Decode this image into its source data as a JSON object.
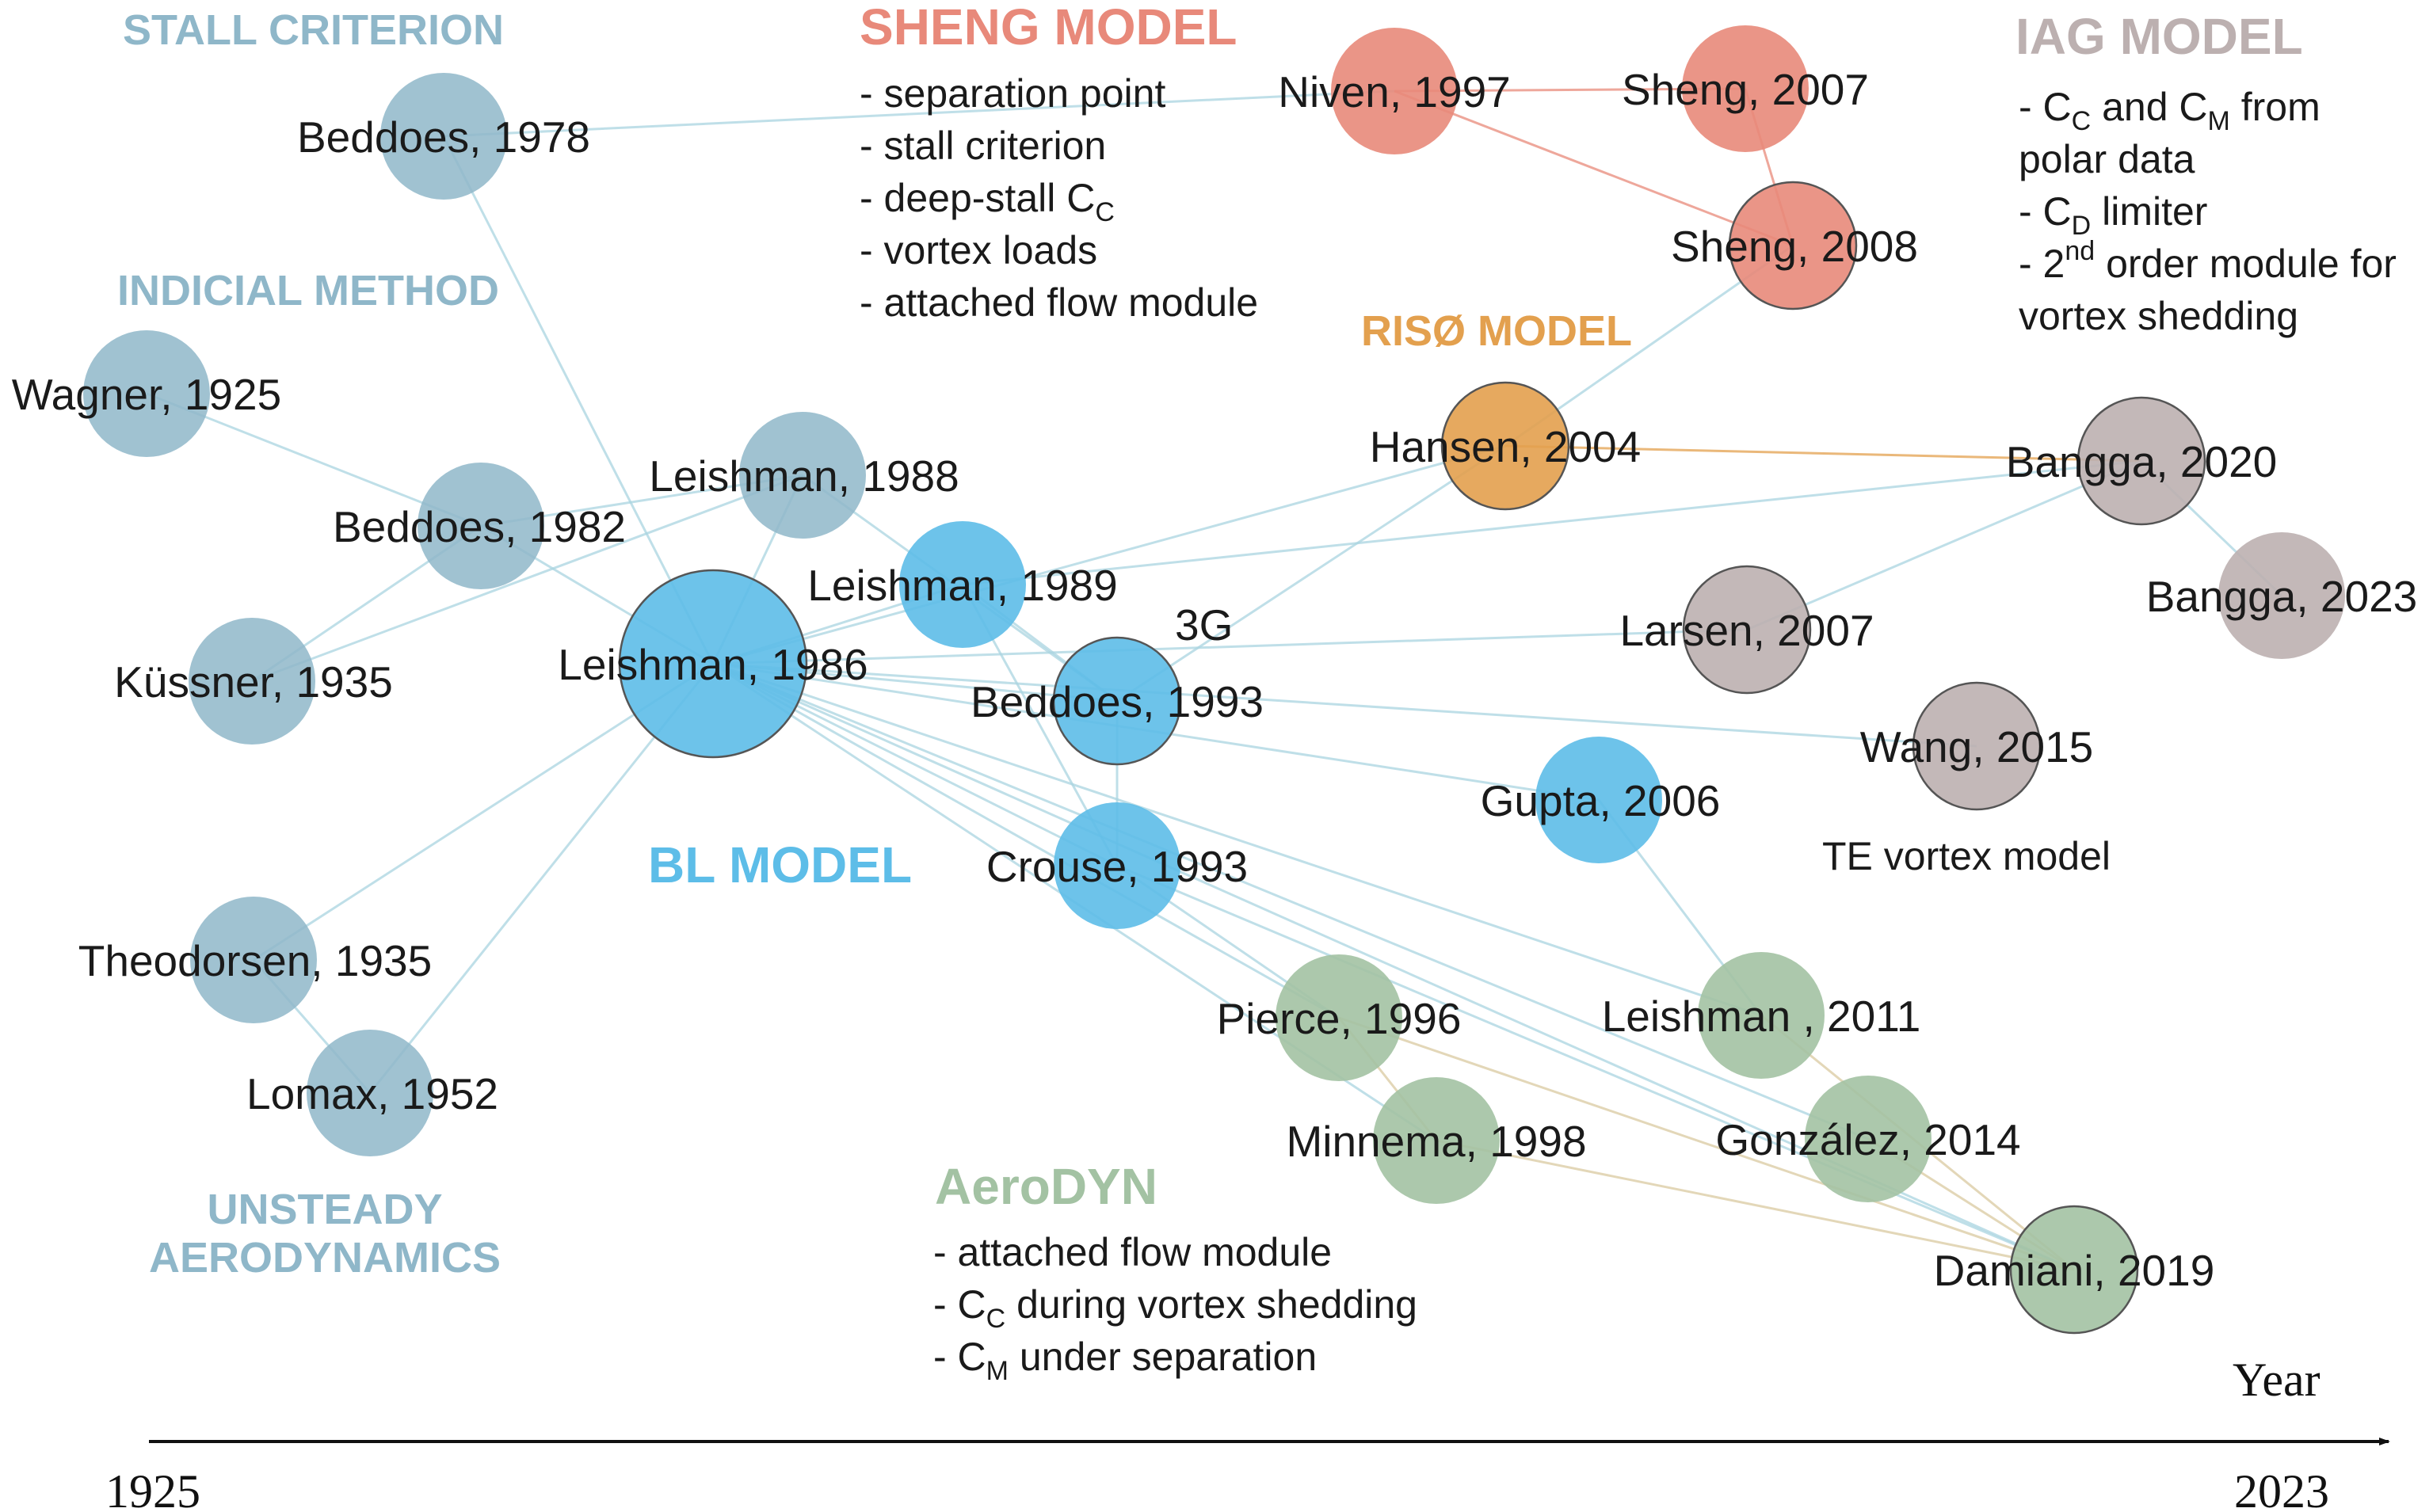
{
  "colors": {
    "unsteady": "#8fb7c9",
    "bl": "#5dbde8",
    "sheng": "#e8897a",
    "riso": "#e3a04e",
    "iag": "#bcb0b0",
    "aerodyn": "#a3c2a3",
    "edge_default": "#a9d4e0"
  },
  "groups": {
    "stall_criterion": "STALL CRITERION",
    "indicial_method": "INDICIAL METHOD",
    "bl_model": "BL MODEL",
    "unsteady_line1": "UNSTEADY",
    "unsteady_line2": "AERODYNAMICS",
    "sheng_model": "SHENG MODEL",
    "riso_model": "RISØ MODEL",
    "iag_model": "IAG MODEL",
    "aerodyn": "AeroDYN"
  },
  "sheng_features": [
    "- separation point",
    "- stall criterion",
    "- deep-stall C",
    "- vortex loads",
    "- attached flow module"
  ],
  "sheng_features_sub": "C",
  "iag_features": {
    "line1_pre": "- C",
    "line1_sub1": "C",
    "line1_mid": " and C",
    "line1_sub2": "M",
    "line1_post": " from",
    "line2": "polar data",
    "line3_pre": "- C",
    "line3_sub": "D",
    "line3_post": " limiter",
    "line4_pre": "- 2",
    "line4_sup": "nd",
    "line4_post": " order module for",
    "line5": "vortex shedding"
  },
  "aerodyn_features": {
    "line1": "- attached flow module",
    "line2_pre": "- C",
    "line2_sub": "C",
    "line2_post": " during vortex shedding",
    "line3_pre": "- C",
    "line3_sub": "M",
    "line3_post": " under separation"
  },
  "annotations": {
    "three_g": "3G",
    "te_vortex": "TE vortex model"
  },
  "axis": {
    "label": "Year",
    "start": "1925",
    "end": "2023"
  },
  "nodes": [
    {
      "id": "beddoes1978",
      "label": "Beddoes, 1978",
      "group": "unsteady"
    },
    {
      "id": "wagner1925",
      "label": "Wagner, 1925",
      "group": "unsteady"
    },
    {
      "id": "beddoes1982",
      "label": "Beddoes, 1982",
      "group": "unsteady"
    },
    {
      "id": "kussner1935",
      "label": "Küssner, 1935",
      "group": "unsteady"
    },
    {
      "id": "theodorsen1935",
      "label": "Theodorsen, 1935",
      "group": "unsteady"
    },
    {
      "id": "lomax1952",
      "label": "Lomax, 1952",
      "group": "unsteady"
    },
    {
      "id": "leishman1988",
      "label": "Leishman, 1988",
      "group": "unsteady"
    },
    {
      "id": "leishman1986",
      "label": "Leishman, 1986",
      "group": "bl"
    },
    {
      "id": "leishman1989",
      "label": "Leishman, 1989",
      "group": "bl"
    },
    {
      "id": "beddoes1993",
      "label": "Beddoes, 1993",
      "group": "bl"
    },
    {
      "id": "crouse1993",
      "label": "Crouse, 1993",
      "group": "bl"
    },
    {
      "id": "gupta2006",
      "label": "Gupta, 2006",
      "group": "bl"
    },
    {
      "id": "niven1997",
      "label": "Niven, 1997",
      "group": "sheng"
    },
    {
      "id": "sheng2007",
      "label": "Sheng, 2007",
      "group": "sheng"
    },
    {
      "id": "sheng2008",
      "label": "Sheng, 2008",
      "group": "sheng"
    },
    {
      "id": "hansen2004",
      "label": "Hansen, 2004",
      "group": "riso"
    },
    {
      "id": "bangga2020",
      "label": "Bangga, 2020",
      "group": "iag"
    },
    {
      "id": "bangga2023",
      "label": "Bangga, 2023",
      "group": "iag"
    },
    {
      "id": "larsen2007",
      "label": "Larsen, 2007",
      "group": "iag"
    },
    {
      "id": "wang2015",
      "label": "Wang, 2015",
      "group": "iag"
    },
    {
      "id": "pierce1996",
      "label": "Pierce, 1996",
      "group": "aerodyn"
    },
    {
      "id": "minnema1998",
      "label": "Minnema, 1998",
      "group": "aerodyn"
    },
    {
      "id": "leishman2011",
      "label": "Leishman , 2011",
      "group": "aerodyn"
    },
    {
      "id": "gonzalez2014",
      "label": "González, 2014",
      "group": "aerodyn"
    },
    {
      "id": "damiani2019",
      "label": "Damiani, 2019",
      "group": "aerodyn"
    }
  ],
  "edges": [
    [
      "beddoes1978",
      "niven1997"
    ],
    [
      "beddoes1978",
      "leishman1986"
    ],
    [
      "wagner1925",
      "beddoes1982"
    ],
    [
      "beddoes1982",
      "kussner1935"
    ],
    [
      "beddoes1982",
      "leishman1986"
    ],
    [
      "beddoes1982",
      "leishman1988"
    ],
    [
      "kussner1935",
      "leishman1988"
    ],
    [
      "theodorsen1935",
      "leishman1986"
    ],
    [
      "theodorsen1935",
      "lomax1952"
    ],
    [
      "lomax1952",
      "leishman1986"
    ],
    [
      "leishman1988",
      "leishman1986"
    ],
    [
      "leishman1988",
      "beddoes1993"
    ],
    [
      "leishman1986",
      "leishman1989"
    ],
    [
      "leishman1986",
      "beddoes1993"
    ],
    [
      "leishman1986",
      "crouse1993"
    ],
    [
      "leishman1986",
      "hansen2004"
    ],
    [
      "leishman1986",
      "larsen2007"
    ],
    [
      "leishman1986",
      "wang2015"
    ],
    [
      "leishman1986",
      "gupta2006"
    ],
    [
      "leishman1986",
      "pierce1996"
    ],
    [
      "leishman1986",
      "minnema1998"
    ],
    [
      "leishman1986",
      "leishman2011"
    ],
    [
      "leishman1986",
      "gonzalez2014"
    ],
    [
      "leishman1986",
      "damiani2019"
    ],
    [
      "leishman1989",
      "beddoes1993"
    ],
    [
      "leishman1989",
      "bangga2020"
    ],
    [
      "leishman1989",
      "crouse1993"
    ],
    [
      "beddoes1993",
      "crouse1993"
    ],
    [
      "beddoes1993",
      "hansen2004"
    ],
    [
      "crouse1993",
      "pierce1996"
    ],
    [
      "crouse1993",
      "damiani2019"
    ],
    [
      "hansen2004",
      "sheng2008"
    ],
    [
      "hansen2004",
      "bangga2020"
    ],
    [
      "niven1997",
      "sheng2007"
    ],
    [
      "niven1997",
      "sheng2008"
    ],
    [
      "sheng2007",
      "sheng2008"
    ],
    [
      "bangga2020",
      "bangga2023"
    ],
    [
      "bangga2020",
      "larsen2007"
    ],
    [
      "gupta2006",
      "leishman2011"
    ],
    [
      "leishman2011",
      "damiani2019"
    ],
    [
      "gonzalez2014",
      "damiani2019"
    ],
    [
      "pierce1996",
      "damiani2019"
    ],
    [
      "minnema1998",
      "damiani2019"
    ],
    [
      "pierce1996",
      "minnema1998"
    ]
  ]
}
